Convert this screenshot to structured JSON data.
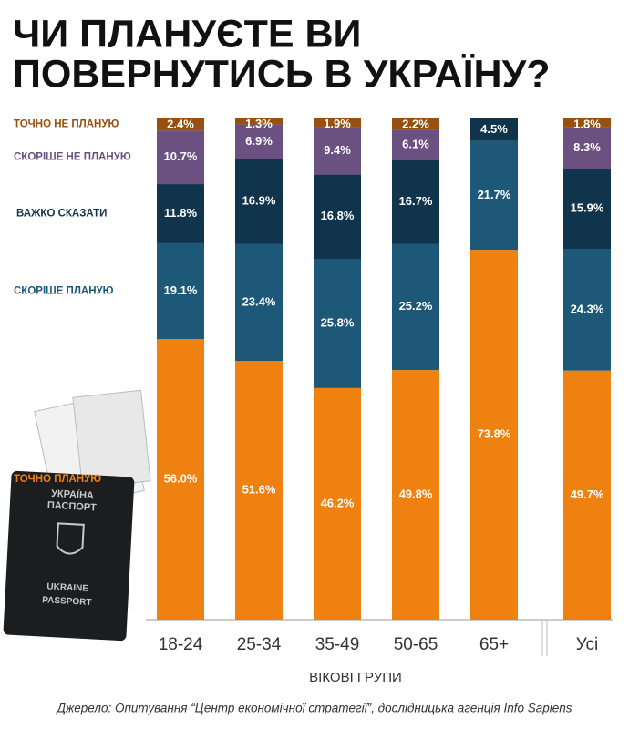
{
  "chart_data": {
    "type": "stacked_bar",
    "title": [
      "ЧИ ПЛАНУЄТЕ ВИ",
      "ПОВЕРНУТИСЬ В УКРАЇНУ?"
    ],
    "categories": [
      "18-24",
      "25-34",
      "35-49",
      "50-65",
      "65+",
      "Усі"
    ],
    "xlabel": "ВІКОВІ ГРУПИ",
    "ylim": [
      0,
      100
    ],
    "series": [
      {
        "name": "ТОЧНО ПЛАНУЮ",
        "color": "#ef8110",
        "values": [
          56.0,
          51.6,
          46.2,
          49.8,
          73.8,
          49.7
        ],
        "value_labels": [
          "56.0%",
          "51.6%",
          "46.2%",
          "49.8%",
          "73.8%",
          "49.7%"
        ]
      },
      {
        "name": "СКОРІШЕ ПЛАНУЮ",
        "color": "#1e5878",
        "values": [
          19.1,
          23.4,
          25.8,
          25.2,
          21.7,
          24.3
        ],
        "value_labels": [
          "19.1%",
          "23.4%",
          "25.8%",
          "25.2%",
          "21.7%",
          "24.3%"
        ]
      },
      {
        "name": "ВАЖКО СКАЗАТИ",
        "color": "#10344b",
        "values": [
          11.8,
          16.9,
          16.8,
          16.7,
          4.5,
          15.9
        ],
        "value_labels": [
          "11.8%",
          "16.9%",
          "16.8%",
          "16.7%",
          "4.5%",
          "15.9%"
        ]
      },
      {
        "name": "СКОРІШЕ НЕ ПЛАНУЮ",
        "color": "#6a5182",
        "values": [
          10.7,
          6.9,
          9.4,
          6.1,
          null,
          8.3
        ],
        "value_labels": [
          "10.7%",
          "6.9%",
          "9.4%",
          "6.1%",
          null,
          "8.3%"
        ]
      },
      {
        "name": "ТОЧНО НЕ ПЛАНУЮ",
        "color": "#97500f",
        "values": [
          2.4,
          1.3,
          1.9,
          2.2,
          null,
          1.8
        ],
        "value_labels": [
          "2.4%",
          "1.3%",
          "1.9%",
          "2.2%",
          null,
          "1.8%"
        ]
      }
    ],
    "source": "Джерело: Опитування “Центр економічної стратегії”, дослідницька агенція Info Sapiens",
    "image_text": [
      "УКРАЇНА",
      "ПАСПОРТ",
      "UKRAINE",
      "PASSPORT"
    ]
  }
}
